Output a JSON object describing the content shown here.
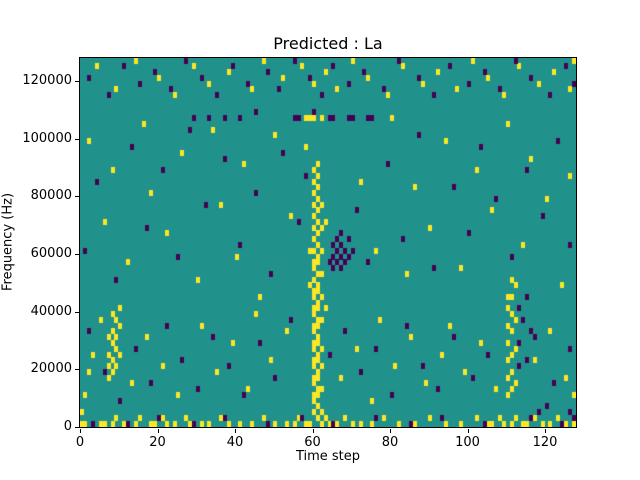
{
  "chart_data": {
    "type": "heatmap",
    "title": "Predicted : La",
    "xlabel": "Time step",
    "ylabel": "Frequency (Hz)",
    "x_range": [
      0,
      128
    ],
    "y_range": [
      0,
      128000
    ],
    "x_ticks": [
      0,
      20,
      40,
      60,
      80,
      100,
      120
    ],
    "y_ticks": [
      0,
      20000,
      40000,
      60000,
      80000,
      100000,
      120000
    ],
    "grid": false,
    "legend": "none",
    "n_time_bins": 128,
    "n_freq_bins": 64,
    "freq_bin_hz": 2000,
    "colors": {
      "background": "#21918c",
      "high": "#fde725",
      "low": "#440154"
    },
    "yellow_cells": [
      [
        4,
        62
      ],
      [
        9,
        58
      ],
      [
        14,
        63
      ],
      [
        20,
        60
      ],
      [
        24,
        57
      ],
      [
        29,
        62
      ],
      [
        33,
        59
      ],
      [
        38,
        61
      ],
      [
        44,
        58
      ],
      [
        47,
        63
      ],
      [
        52,
        60
      ],
      [
        57,
        62
      ],
      [
        60,
        59
      ],
      [
        63,
        61
      ],
      [
        66,
        58
      ],
      [
        70,
        63
      ],
      [
        74,
        60
      ],
      [
        79,
        57
      ],
      [
        83,
        62
      ],
      [
        88,
        59
      ],
      [
        92,
        61
      ],
      [
        97,
        58
      ],
      [
        101,
        63
      ],
      [
        105,
        60
      ],
      [
        109,
        57
      ],
      [
        113,
        62
      ],
      [
        118,
        59
      ],
      [
        122,
        61
      ],
      [
        126,
        58
      ],
      [
        127,
        63
      ],
      [
        2,
        49
      ],
      [
        6,
        35
      ],
      [
        8,
        44
      ],
      [
        12,
        28
      ],
      [
        16,
        52
      ],
      [
        18,
        40
      ],
      [
        22,
        33
      ],
      [
        26,
        47
      ],
      [
        30,
        25
      ],
      [
        34,
        51
      ],
      [
        36,
        38
      ],
      [
        40,
        29
      ],
      [
        42,
        45
      ],
      [
        46,
        22
      ],
      [
        50,
        50
      ],
      [
        54,
        36
      ],
      [
        58,
        48
      ],
      [
        72,
        42
      ],
      [
        76,
        30
      ],
      [
        80,
        53
      ],
      [
        84,
        26
      ],
      [
        86,
        41
      ],
      [
        90,
        34
      ],
      [
        94,
        49
      ],
      [
        98,
        27
      ],
      [
        102,
        44
      ],
      [
        106,
        37
      ],
      [
        110,
        52
      ],
      [
        114,
        31
      ],
      [
        116,
        46
      ],
      [
        120,
        39
      ],
      [
        124,
        24
      ],
      [
        126,
        43
      ],
      [
        3,
        12
      ],
      [
        5,
        18
      ],
      [
        13,
        7
      ],
      [
        17,
        15
      ],
      [
        21,
        10
      ],
      [
        25,
        5
      ],
      [
        31,
        17
      ],
      [
        35,
        9
      ],
      [
        39,
        14
      ],
      [
        43,
        6
      ],
      [
        45,
        19
      ],
      [
        49,
        11
      ],
      [
        53,
        16
      ],
      [
        67,
        8
      ],
      [
        71,
        13
      ],
      [
        75,
        4
      ],
      [
        77,
        18
      ],
      [
        81,
        10
      ],
      [
        85,
        15
      ],
      [
        89,
        7
      ],
      [
        93,
        12
      ],
      [
        95,
        17
      ],
      [
        99,
        9
      ],
      [
        103,
        14
      ],
      [
        107,
        6
      ],
      [
        117,
        11
      ],
      [
        121,
        16
      ],
      [
        125,
        8
      ],
      [
        7,
        8
      ],
      [
        7,
        10
      ],
      [
        7,
        12
      ],
      [
        7,
        15
      ],
      [
        8,
        9
      ],
      [
        8,
        11
      ],
      [
        8,
        14
      ],
      [
        8,
        16
      ],
      [
        8,
        19
      ],
      [
        9,
        10
      ],
      [
        9,
        13
      ],
      [
        9,
        15
      ],
      [
        9,
        18
      ],
      [
        10,
        12
      ],
      [
        10,
        17
      ],
      [
        10,
        20
      ],
      [
        60,
        2
      ],
      [
        60,
        4
      ],
      [
        60,
        5
      ],
      [
        60,
        7
      ],
      [
        60,
        8
      ],
      [
        60,
        10
      ],
      [
        60,
        11
      ],
      [
        60,
        13
      ],
      [
        60,
        14
      ],
      [
        60,
        16
      ],
      [
        60,
        17
      ],
      [
        60,
        19
      ],
      [
        60,
        20
      ],
      [
        60,
        22
      ],
      [
        60,
        23
      ],
      [
        60,
        25
      ],
      [
        60,
        27
      ],
      [
        60,
        28
      ],
      [
        60,
        30
      ],
      [
        60,
        32
      ],
      [
        60,
        34
      ],
      [
        60,
        36
      ],
      [
        60,
        38
      ],
      [
        60,
        40
      ],
      [
        60,
        42
      ],
      [
        60,
        44
      ],
      [
        61,
        1
      ],
      [
        61,
        3
      ],
      [
        61,
        5
      ],
      [
        61,
        6
      ],
      [
        61,
        8
      ],
      [
        61,
        9
      ],
      [
        61,
        11
      ],
      [
        61,
        12
      ],
      [
        61,
        14
      ],
      [
        61,
        15
      ],
      [
        61,
        17
      ],
      [
        61,
        18
      ],
      [
        61,
        20
      ],
      [
        61,
        21
      ],
      [
        61,
        23
      ],
      [
        61,
        24
      ],
      [
        61,
        26
      ],
      [
        61,
        28
      ],
      [
        61,
        29
      ],
      [
        61,
        31
      ],
      [
        61,
        33
      ],
      [
        61,
        35
      ],
      [
        61,
        37
      ],
      [
        61,
        39
      ],
      [
        61,
        41
      ],
      [
        61,
        43
      ],
      [
        61,
        45
      ],
      [
        62,
        2
      ],
      [
        62,
        6
      ],
      [
        62,
        10
      ],
      [
        62,
        13
      ],
      [
        62,
        18
      ],
      [
        62,
        22
      ],
      [
        62,
        26
      ],
      [
        62,
        30
      ],
      [
        62,
        34
      ],
      [
        62,
        38
      ],
      [
        59,
        24
      ],
      [
        59,
        30
      ],
      [
        63,
        20
      ],
      [
        63,
        35
      ],
      [
        58,
        53
      ],
      [
        59,
        53
      ],
      [
        60,
        53
      ],
      [
        62,
        53
      ],
      [
        110,
        5
      ],
      [
        110,
        8
      ],
      [
        110,
        11
      ],
      [
        110,
        14
      ],
      [
        110,
        17
      ],
      [
        110,
        20
      ],
      [
        110,
        22
      ],
      [
        111,
        6
      ],
      [
        111,
        9
      ],
      [
        111,
        12
      ],
      [
        111,
        16
      ],
      [
        111,
        19
      ],
      [
        111,
        22
      ],
      [
        111,
        25
      ],
      [
        112,
        7
      ],
      [
        112,
        13
      ],
      [
        112,
        18
      ],
      [
        112,
        24
      ],
      [
        0,
        0
      ],
      [
        0,
        2
      ],
      [
        1,
        0
      ],
      [
        1,
        5
      ],
      [
        2,
        9
      ],
      [
        127,
        5
      ],
      [
        5,
        0
      ],
      [
        6,
        0
      ],
      [
        8,
        0
      ],
      [
        9,
        1
      ],
      [
        11,
        0
      ],
      [
        14,
        0
      ],
      [
        15,
        1
      ],
      [
        18,
        0
      ],
      [
        19,
        0
      ],
      [
        21,
        1
      ],
      [
        22,
        0
      ],
      [
        24,
        0
      ],
      [
        27,
        1
      ],
      [
        28,
        0
      ],
      [
        31,
        0
      ],
      [
        33,
        0
      ],
      [
        36,
        1
      ],
      [
        38,
        0
      ],
      [
        41,
        0
      ],
      [
        44,
        0
      ],
      [
        47,
        1
      ],
      [
        50,
        0
      ],
      [
        53,
        0
      ],
      [
        55,
        0
      ],
      [
        56,
        1
      ],
      [
        58,
        0
      ],
      [
        59,
        0
      ],
      [
        62,
        0
      ],
      [
        63,
        1
      ],
      [
        64,
        0
      ],
      [
        66,
        0
      ],
      [
        68,
        1
      ],
      [
        70,
        0
      ],
      [
        72,
        0
      ],
      [
        75,
        0
      ],
      [
        78,
        1
      ],
      [
        82,
        0
      ],
      [
        86,
        0
      ],
      [
        90,
        1
      ],
      [
        94,
        0
      ],
      [
        98,
        0
      ],
      [
        102,
        1
      ],
      [
        105,
        0
      ],
      [
        106,
        0
      ],
      [
        108,
        1
      ],
      [
        109,
        0
      ],
      [
        111,
        0
      ],
      [
        112,
        1
      ],
      [
        114,
        0
      ],
      [
        115,
        0
      ],
      [
        117,
        1
      ],
      [
        119,
        0
      ],
      [
        121,
        0
      ],
      [
        123,
        1
      ],
      [
        125,
        0
      ],
      [
        127,
        0
      ]
    ],
    "purple_cells": [
      [
        64,
        28
      ],
      [
        65,
        27
      ],
      [
        65,
        29
      ],
      [
        65,
        31
      ],
      [
        66,
        28
      ],
      [
        66,
        30
      ],
      [
        66,
        32
      ],
      [
        67,
        27
      ],
      [
        67,
        29
      ],
      [
        67,
        31
      ],
      [
        67,
        33
      ],
      [
        68,
        28
      ],
      [
        68,
        30
      ],
      [
        69,
        29
      ],
      [
        69,
        32
      ],
      [
        70,
        30
      ],
      [
        2,
        60
      ],
      [
        7,
        57
      ],
      [
        11,
        62
      ],
      [
        15,
        59
      ],
      [
        19,
        61
      ],
      [
        23,
        58
      ],
      [
        27,
        63
      ],
      [
        31,
        60
      ],
      [
        35,
        57
      ],
      [
        39,
        62
      ],
      [
        43,
        59
      ],
      [
        48,
        61
      ],
      [
        51,
        58
      ],
      [
        55,
        63
      ],
      [
        59,
        60
      ],
      [
        62,
        57
      ],
      [
        65,
        62
      ],
      [
        69,
        59
      ],
      [
        73,
        61
      ],
      [
        78,
        58
      ],
      [
        82,
        63
      ],
      [
        87,
        60
      ],
      [
        91,
        57
      ],
      [
        95,
        62
      ],
      [
        100,
        59
      ],
      [
        104,
        61
      ],
      [
        108,
        58
      ],
      [
        112,
        63
      ],
      [
        116,
        60
      ],
      [
        121,
        57
      ],
      [
        125,
        62
      ],
      [
        127,
        59
      ],
      [
        55,
        53
      ],
      [
        56,
        53
      ],
      [
        60,
        54
      ],
      [
        64,
        53
      ],
      [
        65,
        53
      ],
      [
        69,
        53
      ],
      [
        70,
        53
      ],
      [
        74,
        53
      ],
      [
        75,
        53
      ],
      [
        29,
        53
      ],
      [
        33,
        53
      ],
      [
        37,
        53
      ],
      [
        41,
        53
      ],
      [
        45,
        54
      ],
      [
        1,
        30
      ],
      [
        4,
        42
      ],
      [
        9,
        25
      ],
      [
        13,
        48
      ],
      [
        17,
        34
      ],
      [
        21,
        44
      ],
      [
        25,
        29
      ],
      [
        28,
        51
      ],
      [
        32,
        38
      ],
      [
        37,
        46
      ],
      [
        41,
        31
      ],
      [
        45,
        40
      ],
      [
        49,
        26
      ],
      [
        52,
        47
      ],
      [
        56,
        35
      ],
      [
        58,
        43
      ],
      [
        71,
        37
      ],
      [
        74,
        28
      ],
      [
        79,
        45
      ],
      [
        83,
        32
      ],
      [
        87,
        50
      ],
      [
        91,
        27
      ],
      [
        96,
        41
      ],
      [
        100,
        33
      ],
      [
        103,
        48
      ],
      [
        107,
        39
      ],
      [
        111,
        29
      ],
      [
        115,
        44
      ],
      [
        119,
        36
      ],
      [
        123,
        49
      ],
      [
        126,
        31
      ],
      [
        2,
        16
      ],
      [
        6,
        9
      ],
      [
        10,
        4
      ],
      [
        14,
        13
      ],
      [
        18,
        7
      ],
      [
        22,
        17
      ],
      [
        26,
        11
      ],
      [
        30,
        6
      ],
      [
        34,
        15
      ],
      [
        38,
        10
      ],
      [
        42,
        5
      ],
      [
        46,
        14
      ],
      [
        50,
        8
      ],
      [
        54,
        18
      ],
      [
        64,
        12
      ],
      [
        68,
        16
      ],
      [
        72,
        9
      ],
      [
        76,
        13
      ],
      [
        80,
        5
      ],
      [
        84,
        17
      ],
      [
        88,
        10
      ],
      [
        92,
        6
      ],
      [
        96,
        15
      ],
      [
        101,
        8
      ],
      [
        105,
        12
      ],
      [
        113,
        10
      ],
      [
        117,
        15
      ],
      [
        122,
        7
      ],
      [
        126,
        13
      ],
      [
        113,
        14
      ],
      [
        114,
        18
      ],
      [
        115,
        11
      ],
      [
        116,
        16
      ],
      [
        113,
        20
      ],
      [
        115,
        22
      ],
      [
        118,
        2
      ],
      [
        120,
        3
      ],
      [
        126,
        2
      ],
      [
        3,
        0
      ],
      [
        12,
        0
      ],
      [
        20,
        1
      ],
      [
        29,
        0
      ],
      [
        37,
        1
      ],
      [
        48,
        0
      ],
      [
        57,
        1
      ],
      [
        65,
        0
      ],
      [
        76,
        1
      ],
      [
        85,
        0
      ],
      [
        93,
        1
      ],
      [
        104,
        0
      ],
      [
        116,
        1
      ],
      [
        124,
        0
      ],
      [
        127,
        1
      ]
    ]
  }
}
